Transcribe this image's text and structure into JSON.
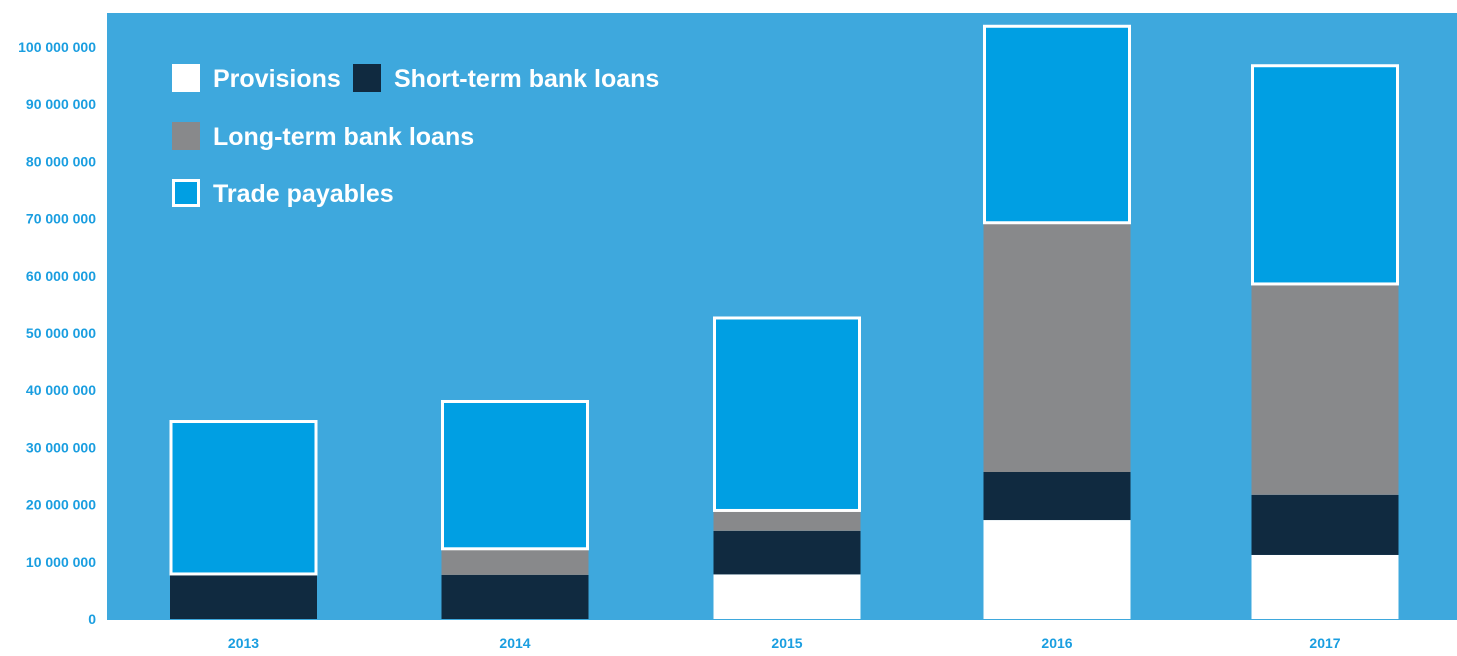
{
  "colors": {
    "plot_background": "#3ea8dd",
    "provisions": "#ffffff",
    "short_term_bank_loans": "#102a40",
    "long_term_bank_loans": "#88898b",
    "trade_payables": "#009fe3",
    "trade_payables_border": "#ffffff",
    "tick_text": "#1a9ee0",
    "legend_text": "#ffffff"
  },
  "chart_data": {
    "type": "bar",
    "stacked": true,
    "categories": [
      "2013",
      "2014",
      "2015",
      "2016",
      "2017"
    ],
    "series": [
      {
        "name": "Provisions",
        "values": [
          0,
          0,
          7800000,
          17300000,
          11200000
        ]
      },
      {
        "name": "Short-term bank loans",
        "values": [
          7700000,
          7700000,
          7600000,
          8400000,
          10500000
        ]
      },
      {
        "name": "Long-term bank loans",
        "values": [
          0,
          4400000,
          3400000,
          43400000,
          36700000
        ]
      },
      {
        "name": "Trade payables",
        "values": [
          27000000,
          26100000,
          34000000,
          34700000,
          38500000
        ]
      }
    ],
    "title": "",
    "xlabel": "",
    "ylabel": "",
    "ylim": [
      0,
      105000000
    ],
    "yticks": [
      0,
      10000000,
      20000000,
      30000000,
      40000000,
      50000000,
      60000000,
      70000000,
      80000000,
      90000000,
      100000000
    ],
    "ytick_labels": [
      "0",
      "10 000 000",
      "20 000 000",
      "30 000 000",
      "40 000 000",
      "50 000 000",
      "60 000 000",
      "70 000 000",
      "80 000 000",
      "90 000 000",
      "100 000 000"
    ],
    "grid": false,
    "legend_position": "top-left",
    "legend": {
      "rows": [
        [
          "Provisions",
          "Short-term bank loans"
        ],
        [
          "Long-term bank loans"
        ],
        [
          "Trade payables"
        ]
      ]
    }
  }
}
